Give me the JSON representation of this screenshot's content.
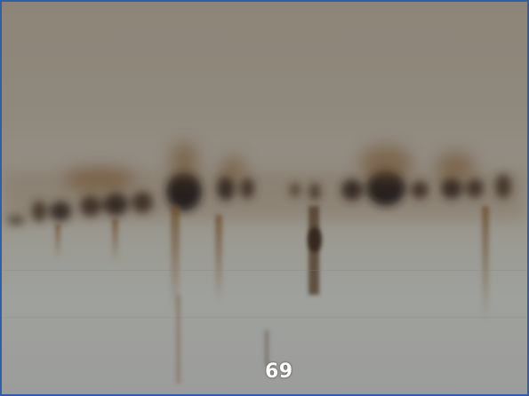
{
  "image": {
    "description_label": "69"
  },
  "colors": {
    "frame_border": "#2f5fa8",
    "band_dark": "#2e241b",
    "band_brown": "#6b4a28",
    "background_top": "#8d8578",
    "background_bottom": "#9c9d9b"
  }
}
